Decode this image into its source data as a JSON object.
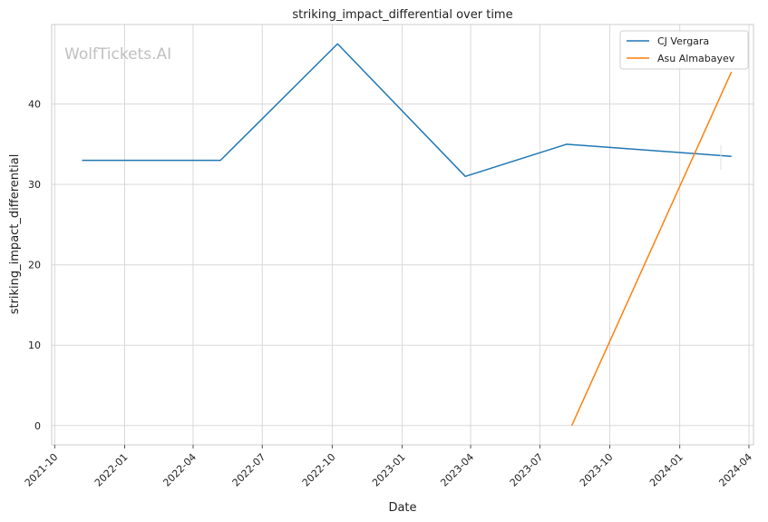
{
  "chart_data": {
    "type": "line",
    "title": "striking_impact_differential over time",
    "xlabel": "Date",
    "ylabel": "striking_impact_differential",
    "watermark": "WolfTickets.AI",
    "x_ticks": [
      "2021-10",
      "2022-01",
      "2022-04",
      "2022-07",
      "2022-10",
      "2023-01",
      "2023-04",
      "2023-07",
      "2023-10",
      "2024-01",
      "2024-04"
    ],
    "y_ticks": [
      0,
      10,
      20,
      30,
      40
    ],
    "xlim": [
      "2021-09-27",
      "2024-04-07"
    ],
    "ylim": [
      -2.4,
      49.9
    ],
    "grid": true,
    "legend_position": "top-right",
    "series": [
      {
        "name": "CJ Vergara",
        "color": "#1f77b4",
        "points": [
          {
            "x": "2021-11-06",
            "y": 33
          },
          {
            "x": "2022-05-07",
            "y": 33
          },
          {
            "x": "2022-10-08",
            "y": 47.5
          },
          {
            "x": "2023-03-25",
            "y": 31
          },
          {
            "x": "2023-08-05",
            "y": 35
          },
          {
            "x": "2024-03-09",
            "y": 33.5
          }
        ]
      },
      {
        "name": "Asu Almabayev",
        "color": "#ff7f0e",
        "points": [
          {
            "x": "2023-08-12",
            "y": 0
          },
          {
            "x": "2024-03-09",
            "y": 44
          }
        ]
      }
    ]
  }
}
